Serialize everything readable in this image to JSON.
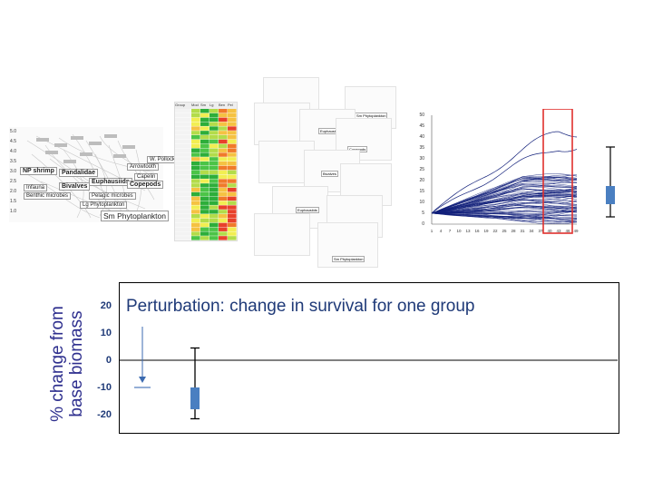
{
  "food_web": {
    "labels": [
      "NP shrimp",
      "Pandalidae",
      "Euphausiids",
      "Bivalves",
      "Copepods",
      "Pelagic microbes",
      "Benthic microbes",
      "Infauna",
      "Sm Phytoplankton",
      "Lg Phytoplankton",
      "Arrowtooth",
      "Capelin",
      "W. Pollock"
    ],
    "yticks": [
      "5.0",
      "4.5",
      "4.0",
      "3.5",
      "3.0",
      "2.5",
      "2.0",
      "1.5",
      "1.0"
    ]
  },
  "heatmap": {
    "header": [
      "Group",
      "Mod",
      "Sm",
      "Lg",
      "Ben",
      "Pel"
    ],
    "colors": [
      "#e8412b",
      "#f07a2a",
      "#f5c242",
      "#f2ee52",
      "#b3dc4a",
      "#4cc447",
      "#2dae3a"
    ]
  },
  "small_multiples": {
    "labels": [
      "Euphausiids",
      "Sm Phytoplankton",
      "Copepods",
      "Bivalves",
      "Euphausiids",
      "Sm Phytoplankton"
    ]
  },
  "trajectories": {
    "yticks": [
      "50",
      "45",
      "40",
      "35",
      "30",
      "25",
      "20",
      "15",
      "10",
      "5",
      "0"
    ],
    "xticks": [
      "1",
      "4",
      "7",
      "10",
      "13",
      "16",
      "19",
      "22",
      "25",
      "28",
      "31",
      "34",
      "37",
      "40",
      "43",
      "46",
      "49"
    ],
    "line_color": "#12207a",
    "highlight_color": "#e0302d"
  },
  "summary_box": {
    "color": "#4a7fc1"
  },
  "perturbation_panel": {
    "title": "Perturbation: change in survival for one group",
    "ylabel_line1": "% change from",
    "ylabel_line2": "base biomass",
    "yticks": [
      "20",
      "10",
      "0",
      "-10",
      "-20"
    ],
    "ytick_values": [
      20,
      10,
      0,
      -10,
      -20
    ],
    "baseline_value": -10,
    "box": {
      "q1": -18,
      "q3": -10,
      "whisker_low": -21.5,
      "whisker_high": 4.5
    },
    "box_color": "#4a7fc1",
    "text_color": "#1f3a78"
  }
}
